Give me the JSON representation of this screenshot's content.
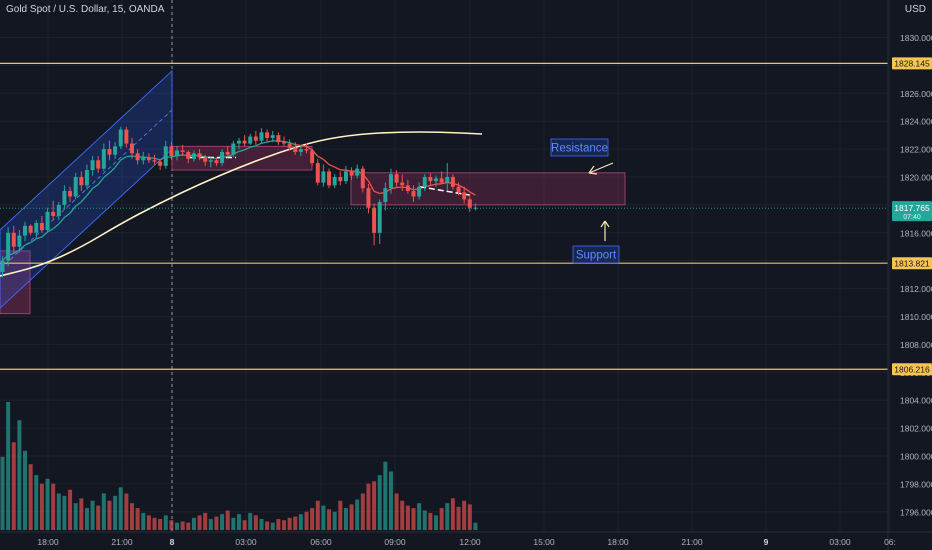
{
  "header": {
    "title": "Gold Spot / U.S. Dollar, 15, OANDA",
    "currency": "USD"
  },
  "colors": {
    "background": "#131722",
    "up": "#26a69a",
    "down": "#ef5350",
    "hline": "#f5c451",
    "ma_long": "#fff3c4",
    "ma_short_up": "#26a69a",
    "ma_short_down": "#ef5350",
    "zone": "#8c2f5a",
    "channel": "#2962ff",
    "label_box": "#1e3a8a"
  },
  "chart_data": {
    "type": "candlestick",
    "symbol": "Gold Spot / U.S. Dollar, 15, OANDA",
    "x_ticks": [
      "18:00",
      "21:00",
      "8",
      "03:00",
      "06:00",
      "09:00",
      "12:00",
      "15:00",
      "18:00",
      "21:00",
      "9",
      "03:00",
      "06:"
    ],
    "y_ticks": [
      1830,
      1828,
      1826,
      1824,
      1822,
      1820,
      1818,
      1816,
      1814,
      1812,
      1810,
      1808,
      1806,
      1804,
      1802,
      1800,
      1798,
      1796
    ],
    "y_tick_labels": [
      "1830.000",
      "1828.000",
      "1826.000",
      "1824.000",
      "1822.000",
      "1820.000",
      "1818.000",
      "1816.000",
      "1814.000",
      "1812.000",
      "1810.000",
      "1808.000",
      "1806.000",
      "1804.000",
      "1802.000",
      "1800.000",
      "1798.000",
      "1796.000"
    ],
    "ylim": [
      1795.1,
      1831.8
    ],
    "horizontal_levels": [
      {
        "value": 1828.145,
        "label": "1828.145"
      },
      {
        "value": 1813.821,
        "label": "1813.821"
      },
      {
        "value": 1806.216,
        "label": "1806.216"
      }
    ],
    "current_price": {
      "value": 1817.765,
      "label": "1817.765",
      "countdown": "07:40"
    },
    "annotations": [
      {
        "text": "Resistance"
      },
      {
        "text": "Support"
      }
    ],
    "candles": [
      {
        "o": 1813.2,
        "h": 1814.3,
        "l": 1812.8,
        "c": 1814.0,
        "v": 60
      },
      {
        "o": 1814.0,
        "h": 1816.4,
        "l": 1813.6,
        "c": 1816.0,
        "v": 105
      },
      {
        "o": 1816.0,
        "h": 1816.5,
        "l": 1814.5,
        "c": 1815.0,
        "v": 72
      },
      {
        "o": 1815.0,
        "h": 1816.2,
        "l": 1814.6,
        "c": 1815.8,
        "v": 90
      },
      {
        "o": 1815.8,
        "h": 1816.8,
        "l": 1815.4,
        "c": 1816.5,
        "v": 65
      },
      {
        "o": 1816.5,
        "h": 1816.6,
        "l": 1815.8,
        "c": 1816.0,
        "v": 54
      },
      {
        "o": 1816.0,
        "h": 1816.9,
        "l": 1815.6,
        "c": 1816.7,
        "v": 45
      },
      {
        "o": 1816.7,
        "h": 1817.2,
        "l": 1816.0,
        "c": 1816.2,
        "v": 38
      },
      {
        "o": 1816.2,
        "h": 1817.8,
        "l": 1816.0,
        "c": 1817.5,
        "v": 42
      },
      {
        "o": 1817.5,
        "h": 1818.3,
        "l": 1816.9,
        "c": 1817.2,
        "v": 38
      },
      {
        "o": 1817.2,
        "h": 1818.2,
        "l": 1816.9,
        "c": 1818.0,
        "v": 30
      },
      {
        "o": 1818.0,
        "h": 1819.4,
        "l": 1817.7,
        "c": 1819.0,
        "v": 28
      },
      {
        "o": 1819.0,
        "h": 1819.3,
        "l": 1818.2,
        "c": 1818.6,
        "v": 33
      },
      {
        "o": 1818.6,
        "h": 1820.3,
        "l": 1818.4,
        "c": 1820.0,
        "v": 22
      },
      {
        "o": 1820.0,
        "h": 1820.4,
        "l": 1819.0,
        "c": 1819.4,
        "v": 26
      },
      {
        "o": 1819.4,
        "h": 1820.9,
        "l": 1819.1,
        "c": 1820.5,
        "v": 18
      },
      {
        "o": 1820.5,
        "h": 1821.5,
        "l": 1820.1,
        "c": 1821.2,
        "v": 24
      },
      {
        "o": 1821.2,
        "h": 1821.5,
        "l": 1820.3,
        "c": 1820.6,
        "v": 20
      },
      {
        "o": 1820.6,
        "h": 1822.4,
        "l": 1820.4,
        "c": 1822.0,
        "v": 30
      },
      {
        "o": 1822.0,
        "h": 1822.6,
        "l": 1821.2,
        "c": 1821.6,
        "v": 24
      },
      {
        "o": 1821.6,
        "h": 1822.5,
        "l": 1821.3,
        "c": 1822.2,
        "v": 28
      },
      {
        "o": 1822.2,
        "h": 1823.6,
        "l": 1822.0,
        "c": 1823.4,
        "v": 35
      },
      {
        "o": 1823.4,
        "h": 1823.6,
        "l": 1822.1,
        "c": 1822.4,
        "v": 30
      },
      {
        "o": 1822.4,
        "h": 1822.8,
        "l": 1821.3,
        "c": 1821.7,
        "v": 22
      },
      {
        "o": 1821.7,
        "h": 1822.0,
        "l": 1820.9,
        "c": 1821.2,
        "v": 18
      },
      {
        "o": 1821.2,
        "h": 1821.8,
        "l": 1820.9,
        "c": 1821.4,
        "v": 14
      },
      {
        "o": 1821.4,
        "h": 1821.7,
        "l": 1821.0,
        "c": 1821.2,
        "v": 12
      },
      {
        "o": 1821.2,
        "h": 1821.6,
        "l": 1820.9,
        "c": 1821.1,
        "v": 10
      },
      {
        "o": 1821.1,
        "h": 1821.3,
        "l": 1820.5,
        "c": 1820.8,
        "v": 9
      },
      {
        "o": 1820.8,
        "h": 1822.6,
        "l": 1820.6,
        "c": 1822.2,
        "v": 12
      },
      {
        "o": 1822.2,
        "h": 1822.5,
        "l": 1821.2,
        "c": 1821.5,
        "v": 8
      },
      {
        "o": 1821.5,
        "h": 1822.2,
        "l": 1821.2,
        "c": 1821.9,
        "v": 6
      },
      {
        "o": 1821.9,
        "h": 1822.3,
        "l": 1821.5,
        "c": 1821.8,
        "v": 7
      },
      {
        "o": 1821.8,
        "h": 1821.9,
        "l": 1821.0,
        "c": 1821.3,
        "v": 6
      },
      {
        "o": 1821.3,
        "h": 1821.9,
        "l": 1821.1,
        "c": 1821.7,
        "v": 10
      },
      {
        "o": 1821.7,
        "h": 1822.0,
        "l": 1821.2,
        "c": 1821.4,
        "v": 12
      },
      {
        "o": 1821.4,
        "h": 1821.6,
        "l": 1820.8,
        "c": 1821.1,
        "v": 14
      },
      {
        "o": 1821.1,
        "h": 1821.5,
        "l": 1820.7,
        "c": 1821.2,
        "v": 9
      },
      {
        "o": 1821.2,
        "h": 1821.4,
        "l": 1820.8,
        "c": 1821.0,
        "v": 11
      },
      {
        "o": 1821.0,
        "h": 1822.0,
        "l": 1820.8,
        "c": 1821.8,
        "v": 13
      },
      {
        "o": 1821.8,
        "h": 1822.2,
        "l": 1821.4,
        "c": 1821.6,
        "v": 16
      },
      {
        "o": 1821.6,
        "h": 1822.6,
        "l": 1821.4,
        "c": 1822.4,
        "v": 10
      },
      {
        "o": 1822.4,
        "h": 1822.8,
        "l": 1822.0,
        "c": 1822.6,
        "v": 13
      },
      {
        "o": 1822.6,
        "h": 1823.0,
        "l": 1822.2,
        "c": 1822.4,
        "v": 8
      },
      {
        "o": 1822.4,
        "h": 1823.1,
        "l": 1822.3,
        "c": 1822.9,
        "v": 14
      },
      {
        "o": 1822.9,
        "h": 1823.3,
        "l": 1822.3,
        "c": 1822.6,
        "v": 12
      },
      {
        "o": 1822.6,
        "h": 1823.5,
        "l": 1822.4,
        "c": 1823.2,
        "v": 9
      },
      {
        "o": 1823.2,
        "h": 1823.4,
        "l": 1822.5,
        "c": 1822.8,
        "v": 7
      },
      {
        "o": 1822.8,
        "h": 1823.3,
        "l": 1822.5,
        "c": 1823.0,
        "v": 6
      },
      {
        "o": 1823.0,
        "h": 1823.2,
        "l": 1822.3,
        "c": 1822.5,
        "v": 9
      },
      {
        "o": 1822.5,
        "h": 1822.9,
        "l": 1822.2,
        "c": 1822.4,
        "v": 8
      },
      {
        "o": 1822.4,
        "h": 1822.7,
        "l": 1821.9,
        "c": 1822.1,
        "v": 10
      },
      {
        "o": 1822.1,
        "h": 1822.5,
        "l": 1821.6,
        "c": 1821.8,
        "v": 11
      },
      {
        "o": 1821.8,
        "h": 1822.2,
        "l": 1821.5,
        "c": 1822.0,
        "v": 13
      },
      {
        "o": 1822.0,
        "h": 1822.4,
        "l": 1821.7,
        "c": 1821.9,
        "v": 15
      },
      {
        "o": 1821.9,
        "h": 1822.0,
        "l": 1820.8,
        "c": 1821.0,
        "v": 18
      },
      {
        "o": 1821.0,
        "h": 1821.3,
        "l": 1819.4,
        "c": 1819.6,
        "v": 24
      },
      {
        "o": 1819.6,
        "h": 1820.9,
        "l": 1819.3,
        "c": 1820.4,
        "v": 20
      },
      {
        "o": 1820.4,
        "h": 1820.6,
        "l": 1819.2,
        "c": 1819.4,
        "v": 17
      },
      {
        "o": 1819.4,
        "h": 1820.2,
        "l": 1819.2,
        "c": 1820.0,
        "v": 15
      },
      {
        "o": 1820.0,
        "h": 1820.4,
        "l": 1819.4,
        "c": 1819.7,
        "v": 24
      },
      {
        "o": 1819.7,
        "h": 1820.8,
        "l": 1819.5,
        "c": 1820.4,
        "v": 18
      },
      {
        "o": 1820.4,
        "h": 1820.7,
        "l": 1819.8,
        "c": 1820.1,
        "v": 21
      },
      {
        "o": 1820.1,
        "h": 1820.9,
        "l": 1819.9,
        "c": 1820.6,
        "v": 25
      },
      {
        "o": 1820.6,
        "h": 1820.8,
        "l": 1818.9,
        "c": 1819.2,
        "v": 30
      },
      {
        "o": 1819.2,
        "h": 1819.5,
        "l": 1817.4,
        "c": 1817.8,
        "v": 38
      },
      {
        "o": 1817.8,
        "h": 1818.1,
        "l": 1815.1,
        "c": 1816.0,
        "v": 40
      },
      {
        "o": 1816.0,
        "h": 1818.4,
        "l": 1815.2,
        "c": 1818.2,
        "v": 45
      },
      {
        "o": 1818.2,
        "h": 1819.6,
        "l": 1817.6,
        "c": 1819.2,
        "v": 56
      },
      {
        "o": 1819.2,
        "h": 1820.6,
        "l": 1818.8,
        "c": 1820.2,
        "v": 48
      },
      {
        "o": 1820.2,
        "h": 1820.5,
        "l": 1819.3,
        "c": 1819.6,
        "v": 30
      },
      {
        "o": 1819.6,
        "h": 1820.2,
        "l": 1819.0,
        "c": 1819.4,
        "v": 24
      },
      {
        "o": 1819.4,
        "h": 1819.8,
        "l": 1818.8,
        "c": 1819.0,
        "v": 20
      },
      {
        "o": 1819.0,
        "h": 1819.4,
        "l": 1818.2,
        "c": 1818.6,
        "v": 18
      },
      {
        "o": 1818.6,
        "h": 1819.6,
        "l": 1818.4,
        "c": 1819.3,
        "v": 22
      },
      {
        "o": 1819.3,
        "h": 1820.2,
        "l": 1819.0,
        "c": 1820.0,
        "v": 16
      },
      {
        "o": 1820.0,
        "h": 1820.3,
        "l": 1819.4,
        "c": 1819.7,
        "v": 14
      },
      {
        "o": 1819.7,
        "h": 1820.1,
        "l": 1819.3,
        "c": 1819.9,
        "v": 12
      },
      {
        "o": 1819.9,
        "h": 1820.4,
        "l": 1819.5,
        "c": 1819.6,
        "v": 18
      },
      {
        "o": 1819.6,
        "h": 1821.0,
        "l": 1819.0,
        "c": 1820.0,
        "v": 22
      },
      {
        "o": 1820.0,
        "h": 1820.2,
        "l": 1819.1,
        "c": 1819.3,
        "v": 26
      },
      {
        "o": 1819.3,
        "h": 1819.6,
        "l": 1818.7,
        "c": 1818.9,
        "v": 19
      },
      {
        "o": 1818.9,
        "h": 1819.3,
        "l": 1818.1,
        "c": 1818.4,
        "v": 24
      },
      {
        "o": 1818.4,
        "h": 1818.8,
        "l": 1817.5,
        "c": 1817.8,
        "v": 21
      },
      {
        "o": 1817.8,
        "h": 1818.1,
        "l": 1817.6,
        "c": 1817.8,
        "v": 6
      }
    ]
  }
}
